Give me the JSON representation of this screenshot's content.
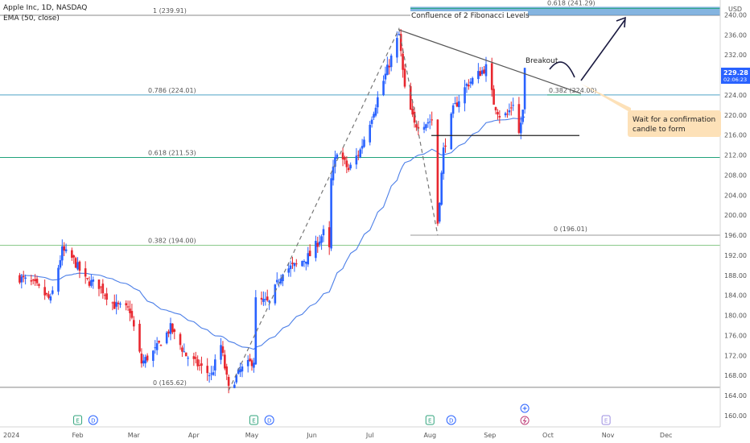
{
  "header": {
    "symbol_line": "Apple Inc, 1D, NASDAQ",
    "ema_line": "EMA (50, close)",
    "currency": "USD"
  },
  "price_badge": {
    "price": "229.28",
    "countdown": "02:06:23"
  },
  "colors": {
    "up": "#2962ff",
    "down": "#e8272f",
    "ema": "#4c7fe8",
    "fib_high": "#4fa3c8",
    "fib_mid": "#21a37b",
    "fib_low": "#8bc98b",
    "callout_bg": "#fde1b8"
  },
  "annotations": {
    "confluence": "Confluence of 2 Fibonacci Levels",
    "breakout": "Breakout",
    "callout": [
      "Wait for a confirmation",
      "candle to form"
    ]
  },
  "chart_data": {
    "type": "candlestick",
    "title": "Apple Inc, 1D, NASDAQ",
    "y_ticks": [
      160,
      164,
      168,
      172,
      176,
      180,
      184,
      188,
      192,
      196,
      200,
      204,
      208,
      212,
      216,
      220,
      224,
      228,
      232,
      236,
      240
    ],
    "x_ticks": [
      "2024",
      "Feb",
      "Mar",
      "Apr",
      "May",
      "Jun",
      "Jul",
      "Aug",
      "Sep",
      "Oct",
      "Nov",
      "Dec"
    ],
    "ylim": [
      158.5,
      243
    ],
    "fib_levels": [
      {
        "label": "1 (239.91)",
        "price": 239.91,
        "color": "#888888"
      },
      {
        "label": "0.786 (224.01)",
        "price": 224.01,
        "color": "#4fa3c8"
      },
      {
        "label": "0.618 (211.53)",
        "price": 211.53,
        "color": "#21a37b"
      },
      {
        "label": "0.382 (194.00)",
        "price": 194.0,
        "color": "#8bc98b"
      },
      {
        "label": "0 (165.62)",
        "price": 165.62,
        "color": "#888888"
      }
    ],
    "fib_levels_2": [
      {
        "label": "0.618 (241.29)",
        "price": 241.29,
        "color": "#21a37b"
      },
      {
        "label": "0.382 (224.00)",
        "price": 224.0,
        "color": "#21a37b"
      },
      {
        "label": "0 (196.01)",
        "price": 196.01,
        "color": "#888888"
      }
    ],
    "swing_points": [
      {
        "date": "2024-04-19",
        "price": 165.0
      },
      {
        "date": "2024-07-16",
        "price": 237.2
      },
      {
        "date": "2024-08-05",
        "price": 196.0
      }
    ],
    "event_markers": [
      {
        "label": "E",
        "date": "2024-02-01"
      },
      {
        "label": "D",
        "date": "2024-02-09"
      },
      {
        "label": "E",
        "date": "2024-05-02"
      },
      {
        "label": "D",
        "date": "2024-05-10"
      },
      {
        "label": "E",
        "date": "2024-08-01"
      },
      {
        "label": "D",
        "date": "2024-08-12"
      },
      {
        "label": "E",
        "date": "2024-10-31"
      }
    ],
    "last_price": 229.28
  }
}
